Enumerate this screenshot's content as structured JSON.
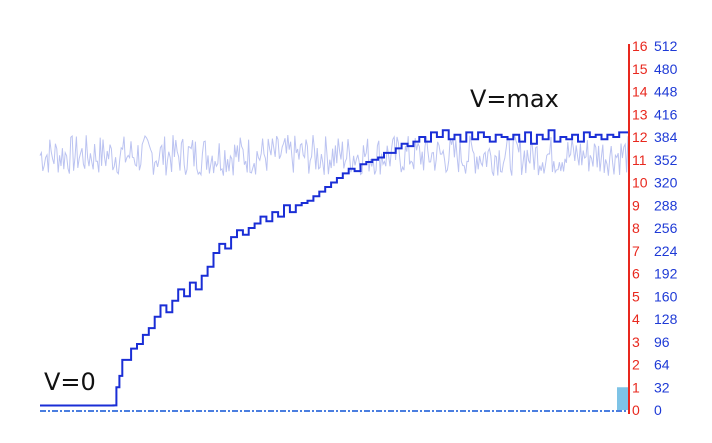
{
  "chart_data": {
    "type": "line",
    "title": "",
    "xlabel": "",
    "ylabel": "",
    "annotations": [
      "V=0",
      "V=max"
    ],
    "y_axis_left": {
      "ticks": [
        "0",
        "1",
        "2",
        "3",
        "4",
        "5",
        "6",
        "7",
        "8",
        "9",
        "10",
        "11",
        "12",
        "13",
        "14",
        "15",
        "16"
      ],
      "range": [
        0,
        16
      ],
      "color": "#e8281e"
    },
    "y_axis_right": {
      "ticks": [
        "0",
        "32",
        "64",
        "96",
        "128",
        "160",
        "192",
        "224",
        "256",
        "288",
        "320",
        "352",
        "384",
        "416",
        "448",
        "480",
        "512"
      ],
      "range": [
        0,
        512
      ],
      "color": "#1e3ad6"
    },
    "x_range": [
      0,
      100
    ],
    "grid": false,
    "series": [
      {
        "color": "#1a2ed6",
        "style": "step",
        "points": [
          [
            0,
            0.2
          ],
          [
            12.5,
            0.2
          ],
          [
            13,
            1.0
          ],
          [
            13.5,
            1.5
          ],
          [
            14,
            2.2
          ],
          [
            15.5,
            2.7
          ],
          [
            16.5,
            2.9
          ],
          [
            17.5,
            3.3
          ],
          [
            18.5,
            3.6
          ],
          [
            19.5,
            4.1
          ],
          [
            20.5,
            4.6
          ],
          [
            21.5,
            4.3
          ],
          [
            22.5,
            4.8
          ],
          [
            23.5,
            5.3
          ],
          [
            24.5,
            5.0
          ],
          [
            25.5,
            5.6
          ],
          [
            26.5,
            5.3
          ],
          [
            27.5,
            5.9
          ],
          [
            28.5,
            6.3
          ],
          [
            29.5,
            6.9
          ],
          [
            30.5,
            7.3
          ],
          [
            31.5,
            7.1
          ],
          [
            32.5,
            7.6
          ],
          [
            33.5,
            7.9
          ],
          [
            34.5,
            7.7
          ],
          [
            35.5,
            8.0
          ],
          [
            36.5,
            8.2
          ],
          [
            37.5,
            8.5
          ],
          [
            38.5,
            8.3
          ],
          [
            39.5,
            8.7
          ],
          [
            40.5,
            8.5
          ],
          [
            41.5,
            9.0
          ],
          [
            42.5,
            8.7
          ],
          [
            43.5,
            9.0
          ],
          [
            44.5,
            9.1
          ],
          [
            45.5,
            9.2
          ],
          [
            46.5,
            9.4
          ],
          [
            47.5,
            9.6
          ],
          [
            48.5,
            9.8
          ],
          [
            49.5,
            10.0
          ],
          [
            50.5,
            10.2
          ],
          [
            51.5,
            10.4
          ],
          [
            52.5,
            10.6
          ],
          [
            53.5,
            10.5
          ],
          [
            54.5,
            10.8
          ],
          [
            55.5,
            10.9
          ],
          [
            56.5,
            11.0
          ],
          [
            57.5,
            11.1
          ],
          [
            58.5,
            11.3
          ],
          [
            59.5,
            11.3
          ],
          [
            60.5,
            11.5
          ],
          [
            61.5,
            11.7
          ],
          [
            62.5,
            11.6
          ],
          [
            63.5,
            11.8
          ],
          [
            64.5,
            12.0
          ],
          [
            65.5,
            11.8
          ],
          [
            66.5,
            12.2
          ],
          [
            67.5,
            12.0
          ],
          [
            68.5,
            12.3
          ],
          [
            69.5,
            11.9
          ],
          [
            70.5,
            12.1
          ],
          [
            71.5,
            11.8
          ],
          [
            72.5,
            12.2
          ],
          [
            73.5,
            11.9
          ],
          [
            74.5,
            12.2
          ],
          [
            75.5,
            12.0
          ],
          [
            76.5,
            11.8
          ],
          [
            77.5,
            12.1
          ],
          [
            78.5,
            12.0
          ],
          [
            79.5,
            11.9
          ],
          [
            80.5,
            12.1
          ],
          [
            81.5,
            11.8
          ],
          [
            82.5,
            12.2
          ],
          [
            83.5,
            11.7
          ],
          [
            84.5,
            12.1
          ],
          [
            85.5,
            11.9
          ],
          [
            86.5,
            12.3
          ],
          [
            87.5,
            11.8
          ],
          [
            88.5,
            12.0
          ],
          [
            89.5,
            11.9
          ],
          [
            90.5,
            12.1
          ],
          [
            91.5,
            11.8
          ],
          [
            92.5,
            12.2
          ],
          [
            93.5,
            12.0
          ],
          [
            94.5,
            12.1
          ],
          [
            95.5,
            11.9
          ],
          [
            96.5,
            12.1
          ],
          [
            97.5,
            12.0
          ],
          [
            98.5,
            12.2
          ],
          [
            100,
            12.2
          ]
        ]
      },
      {
        "color": "#b4bdf0",
        "style": "noise",
        "x_start": 0,
        "x_end": 100,
        "y_center": 11.2,
        "y_amplitude": 0.9
      }
    ],
    "baseline": {
      "value": 0,
      "color": "#4a7ee0",
      "style": "dashed"
    },
    "end_bar": {
      "value": 1,
      "color": "#7ec3e6"
    }
  }
}
